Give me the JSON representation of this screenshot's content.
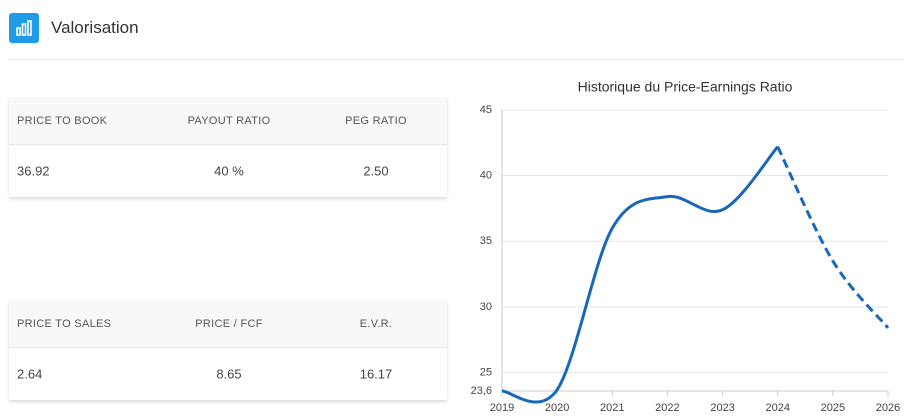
{
  "header": {
    "title": "Valorisation"
  },
  "tables": [
    {
      "headers": [
        "PRICE TO BOOK",
        "PAYOUT RATIO",
        "PEG RATIO"
      ],
      "values": [
        "36.92",
        "40 %",
        "2.50"
      ]
    },
    {
      "headers": [
        "PRICE TO SALES",
        "PRICE / FCF",
        "E.V.R."
      ],
      "values": [
        "2.64",
        "8.65",
        "16.17"
      ]
    }
  ],
  "chart_data": {
    "type": "line",
    "title": "Historique du Price-Earnings Ratio",
    "x": [
      2019,
      2020,
      2021,
      2022,
      2023,
      2024,
      2025,
      2026
    ],
    "xlim": [
      2019,
      2026
    ],
    "xticks": [
      2019,
      2020,
      2021,
      2022,
      2023,
      2024,
      2025,
      2026
    ],
    "ylim": [
      23.6,
      45
    ],
    "yticks": [
      {
        "value": 23.6,
        "label": "23,6"
      },
      25,
      30,
      35,
      40,
      45
    ],
    "grid": true,
    "series": [
      {
        "color": "#1a66b8",
        "dashed": false,
        "values": [
          23.6,
          23.7,
          36,
          38.4,
          37.4,
          42.2,
          null,
          null
        ]
      },
      {
        "color": "#1a66b8",
        "dashed": true,
        "values": [
          null,
          null,
          null,
          null,
          null,
          42.2,
          33.5,
          28.4
        ]
      }
    ]
  }
}
